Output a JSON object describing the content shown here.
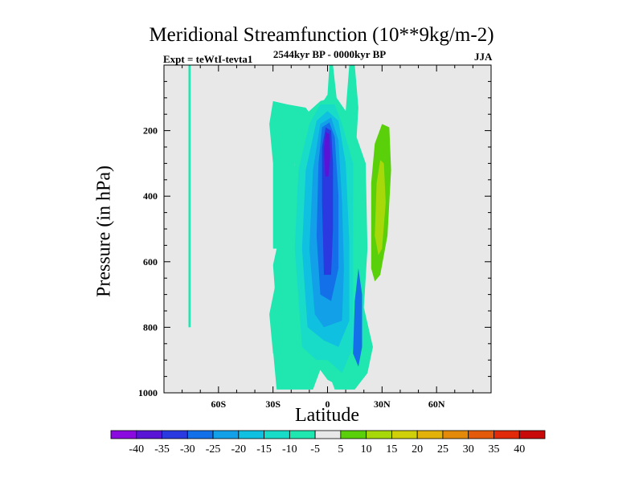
{
  "chart_data": {
    "type": "heatmap",
    "title": "Meridional Streamfunction (10**9kg/m-2)",
    "subtitle": "2544kyr BP - 0000kyr BP",
    "left_annotation": "Expt = teWtI-tevta1",
    "right_annotation": "JJA",
    "xlabel": "Latitude",
    "ylabel": "Pressure (in hPa)",
    "xlim": [
      -90,
      90
    ],
    "ylim": [
      1000,
      0
    ],
    "x_ticks": [
      -60,
      -30,
      0,
      30,
      60
    ],
    "x_tick_labels": [
      "60S",
      "30S",
      "0",
      "30N",
      "60N"
    ],
    "y_ticks": [
      200,
      400,
      600,
      800,
      1000
    ],
    "y_tick_labels": [
      "200",
      "400",
      "600",
      "800",
      "1000"
    ],
    "colorbar": {
      "levels": [
        -40,
        -35,
        -30,
        -25,
        -20,
        -15,
        -10,
        -5,
        5,
        10,
        15,
        20,
        25,
        30,
        35,
        40
      ],
      "labels": [
        "-40",
        "-35",
        "-30",
        "-25",
        "-20",
        "-15",
        "-10",
        "-5",
        "5",
        "10",
        "15",
        "20",
        "25",
        "30",
        "35",
        "40"
      ],
      "colors": [
        "#8a0ae0",
        "#5a14d6",
        "#2a3ae0",
        "#1470e8",
        "#12a0e8",
        "#10c0e0",
        "#18dcc8",
        "#20e6b0",
        "#e8e8e8",
        "#5ad00a",
        "#a6d80a",
        "#d0d00a",
        "#e2b20a",
        "#e48a0a",
        "#e25a0a",
        "#e02a0a",
        "#c80a0a"
      ]
    },
    "contour_regions": [
      {
        "name": "cyan-band-70S",
        "value": -7,
        "points": [
          [
            -76.5,
            0
          ],
          [
            -75.3,
            0
          ],
          [
            -75.3,
            800
          ],
          [
            -76.5,
            800
          ]
        ]
      },
      {
        "name": "cyan-upper-30S-0",
        "value": -7,
        "points": [
          [
            -28,
            990
          ],
          [
            -30,
            870
          ],
          [
            -28,
            760
          ],
          [
            -30,
            610
          ],
          [
            -28,
            560
          ],
          [
            -20,
            560
          ],
          [
            -14,
            620
          ],
          [
            -10,
            480
          ],
          [
            -12,
            300
          ],
          [
            -12,
            220
          ],
          [
            -8,
            160
          ],
          [
            0,
            90
          ],
          [
            1,
            0
          ],
          [
            3,
            0
          ],
          [
            5,
            100
          ],
          [
            10,
            140
          ],
          [
            12,
            0
          ],
          [
            15,
            0
          ],
          [
            17,
            130
          ],
          [
            16,
            220
          ],
          [
            21,
            300
          ],
          [
            22,
            560
          ],
          [
            20,
            740
          ],
          [
            25,
            860
          ],
          [
            22,
            940
          ],
          [
            15,
            990
          ],
          [
            4,
            990
          ],
          [
            -2,
            900
          ],
          [
            -8,
            990
          ]
        ]
      },
      {
        "name": "cyan-upper-30S-cap",
        "value": -7,
        "points": [
          [
            -30,
            560
          ],
          [
            -30,
            300
          ],
          [
            -32,
            180
          ],
          [
            -30,
            110
          ],
          [
            -22,
            120
          ],
          [
            -12,
            130
          ],
          [
            -8,
            160
          ],
          [
            -12,
            220
          ],
          [
            -18,
            300
          ],
          [
            -20,
            560
          ]
        ]
      },
      {
        "name": "cyan-left-lower",
        "value": -7,
        "points": [
          [
            -30,
            880
          ],
          [
            -32,
            760
          ],
          [
            -28,
            650
          ],
          [
            -24,
            620
          ],
          [
            -26,
            720
          ],
          [
            -26,
            880
          ]
        ]
      },
      {
        "name": "seafoam-core",
        "value": -8,
        "points": [
          [
            -20,
            900
          ],
          [
            -22,
            600
          ],
          [
            -18,
            300
          ],
          [
            -12,
            150
          ],
          [
            -4,
            110
          ],
          [
            2,
            100
          ],
          [
            7,
            140
          ],
          [
            12,
            220
          ],
          [
            15,
            300
          ],
          [
            18,
            560
          ],
          [
            18,
            900
          ],
          [
            10,
            990
          ],
          [
            0,
            960
          ],
          [
            -8,
            900
          ]
        ]
      },
      {
        "name": "teal-core",
        "value": -12,
        "points": [
          [
            -14,
            860
          ],
          [
            -18,
            560
          ],
          [
            -16,
            320
          ],
          [
            -10,
            180
          ],
          [
            -4,
            120
          ],
          [
            4,
            120
          ],
          [
            8,
            180
          ],
          [
            14,
            300
          ],
          [
            14,
            540
          ],
          [
            14,
            860
          ],
          [
            8,
            940
          ],
          [
            0,
            900
          ],
          [
            -6,
            900
          ]
        ]
      },
      {
        "name": "lightblue-core",
        "value": -17,
        "points": [
          [
            -11,
            800
          ],
          [
            -14,
            560
          ],
          [
            -12,
            320
          ],
          [
            -6,
            170
          ],
          [
            0,
            140
          ],
          [
            6,
            170
          ],
          [
            10,
            300
          ],
          [
            12,
            540
          ],
          [
            12,
            780
          ],
          [
            6,
            860
          ],
          [
            -2,
            840
          ]
        ]
      },
      {
        "name": "medblue-core",
        "value": -22,
        "points": [
          [
            -7,
            760
          ],
          [
            -10,
            560
          ],
          [
            -8,
            320
          ],
          [
            -4,
            180
          ],
          [
            2,
            160
          ],
          [
            6,
            230
          ],
          [
            8,
            420
          ],
          [
            9,
            620
          ],
          [
            8,
            780
          ],
          [
            -2,
            800
          ]
        ]
      },
      {
        "name": "blue-core",
        "value": -27,
        "points": [
          [
            -4,
            700
          ],
          [
            -6,
            520
          ],
          [
            -5,
            300
          ],
          [
            -3,
            190
          ],
          [
            1,
            175
          ],
          [
            4,
            220
          ],
          [
            6,
            400
          ],
          [
            6,
            620
          ],
          [
            2,
            720
          ]
        ]
      },
      {
        "name": "darkblue-core",
        "value": -32,
        "points": [
          [
            -2,
            640
          ],
          [
            -3,
            420
          ],
          [
            -3,
            250
          ],
          [
            -1,
            190
          ],
          [
            2,
            200
          ],
          [
            3,
            300
          ],
          [
            3,
            500
          ],
          [
            2,
            640
          ]
        ]
      },
      {
        "name": "indigo-core",
        "value": -37,
        "points": [
          [
            -1.2,
            340
          ],
          [
            -2,
            260
          ],
          [
            -1,
            205
          ],
          [
            1,
            210
          ],
          [
            1.5,
            280
          ],
          [
            0.5,
            340
          ]
        ]
      },
      {
        "name": "blue-south-lobe",
        "value": -27,
        "points": [
          [
            14,
            880
          ],
          [
            15,
            720
          ],
          [
            17,
            620
          ],
          [
            19,
            700
          ],
          [
            19,
            860
          ],
          [
            17,
            920
          ]
        ]
      },
      {
        "name": "lime-cell",
        "value": 7,
        "points": [
          [
            24,
            620
          ],
          [
            24,
            360
          ],
          [
            26,
            240
          ],
          [
            30,
            180
          ],
          [
            34,
            190
          ],
          [
            35,
            320
          ],
          [
            33,
            520
          ],
          [
            29,
            640
          ],
          [
            26,
            660
          ]
        ]
      },
      {
        "name": "yellowgreen-cell",
        "value": 12,
        "points": [
          [
            26,
            520
          ],
          [
            27,
            360
          ],
          [
            29,
            290
          ],
          [
            31,
            300
          ],
          [
            32,
            420
          ],
          [
            30,
            560
          ],
          [
            28,
            580
          ]
        ]
      }
    ]
  }
}
